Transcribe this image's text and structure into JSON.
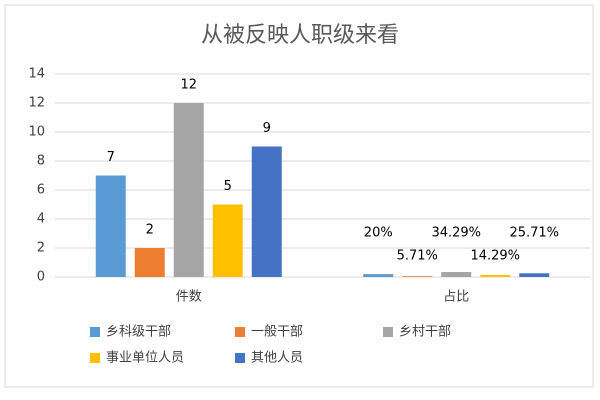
{
  "chart_data": {
    "type": "bar",
    "title": "从被反映人职级来看",
    "categories": [
      "件数",
      "占比"
    ],
    "series": [
      {
        "name": "乡科级干部",
        "color": "#5b9bd5",
        "values": [
          7,
          0.2
        ],
        "value_labels": [
          "7",
          "20%"
        ]
      },
      {
        "name": "一般干部",
        "color": "#ed7d31",
        "values": [
          2,
          0.0571
        ],
        "value_labels": [
          "2",
          "5.71%"
        ]
      },
      {
        "name": "乡村干部",
        "color": "#a5a5a5",
        "values": [
          12,
          0.3429
        ],
        "value_labels": [
          "12",
          "34.29%"
        ]
      },
      {
        "name": "事业单位人员",
        "color": "#ffc000",
        "values": [
          5,
          0.1429
        ],
        "value_labels": [
          "5",
          "14.29%"
        ]
      },
      {
        "name": "其他人员",
        "color": "#4472c4",
        "values": [
          9,
          0.2571
        ],
        "value_labels": [
          "9",
          "25.71%"
        ]
      }
    ],
    "ylim": [
      0,
      14
    ],
    "yticks": [
      0,
      2,
      4,
      6,
      8,
      10,
      12,
      14
    ],
    "grid": true,
    "legend": "bottom"
  }
}
